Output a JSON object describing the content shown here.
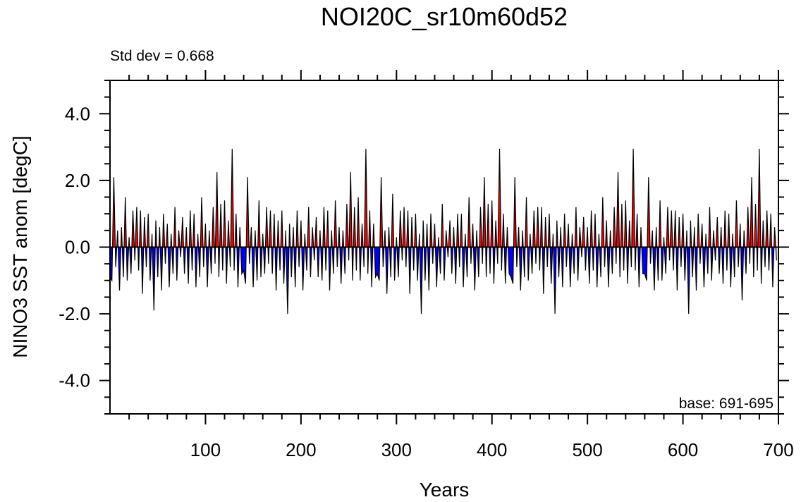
{
  "chart_data": {
    "type": "area",
    "title": "NOI20C_sr10m60d52",
    "xlabel": "Years",
    "ylabel": "NINO3 SST anom [degC]",
    "annotation_left": "Std dev = 0.668",
    "annotation_right": "base: 691-695",
    "xlim": [
      0,
      700
    ],
    "ylim": [
      -5,
      5
    ],
    "x_ticks": [
      100,
      200,
      300,
      400,
      500,
      600,
      700
    ],
    "x_tick_labels": [
      "100",
      "200",
      "300",
      "400",
      "500",
      "600",
      "700"
    ],
    "x_minor_step": 20,
    "y_ticks": [
      -4,
      -2,
      0,
      2,
      4
    ],
    "y_tick_labels": [
      "-4.0",
      "-2.0",
      "0.0",
      "2.0",
      "4.0"
    ],
    "y_minor_step": 0.5,
    "grid": false,
    "colors": {
      "positive": "#ff0000",
      "negative": "#0000ff",
      "line": "#000000"
    },
    "x_start": 0,
    "x_step": 2,
    "values": [
      -0.9,
      -1.0,
      2.1,
      -0.6,
      0.5,
      -1.3,
      0.6,
      -0.9,
      1.5,
      -1.0,
      0.3,
      -0.8,
      1.1,
      -0.4,
      1.2,
      -0.7,
      1.1,
      -1.4,
      0.9,
      -0.6,
      1.0,
      -1.0,
      0.4,
      -1.9,
      0.8,
      -0.9,
      0.6,
      -1.3,
      1.0,
      -0.5,
      0.7,
      -1.2,
      0.4,
      -0.8,
      1.2,
      -1.0,
      0.5,
      -0.3,
      0.9,
      -0.8,
      0.6,
      -1.1,
      1.1,
      -0.7,
      1.0,
      -1.2,
      0.4,
      -0.9,
      1.5,
      -0.6,
      0.7,
      -1.2,
      0.5,
      -0.8,
      1.2,
      -0.5,
      2.25,
      -0.9,
      1.3,
      -0.7,
      1.4,
      -1.1,
      0.8,
      -0.6,
      2.95,
      -0.7,
      1.0,
      -1.2,
      0.6,
      -0.8,
      -0.7,
      -1.1,
      2.1,
      -0.5,
      0.6,
      -1.2,
      0.5,
      -1.0,
      1.4,
      -0.9,
      0.4,
      -0.8,
      1.2,
      -0.5,
      1.1,
      -0.8,
      1.0,
      -1.3,
      0.8,
      -0.7,
      1.1,
      -1.1,
      0.5,
      -2.0,
      0.7,
      -0.9,
      0.6,
      -1.2,
      1.1,
      -0.6,
      0.8,
      -1.3,
      0.4,
      -0.7,
      1.2,
      -0.9,
      0.6,
      -0.4,
      0.9,
      -0.9,
      0.5,
      -1.0,
      1.2,
      -0.7,
      1.1,
      -1.3,
      0.5,
      -0.8,
      1.4,
      -0.6,
      0.6,
      -1.1,
      0.5,
      -0.8,
      1.3,
      -0.4,
      2.25,
      -1.0,
      1.2,
      -0.7,
      1.5,
      -1.0,
      0.7,
      -0.6,
      2.95,
      -0.8,
      1.1,
      -1.2,
      0.7,
      -0.9,
      -0.8,
      -1.0,
      2.1,
      -0.6,
      0.5,
      -1.4,
      0.6,
      -0.9,
      1.6,
      -1.0,
      0.3,
      -0.9,
      1.1,
      -0.4,
      1.2,
      -0.6,
      1.1,
      -1.4,
      0.9,
      -0.7,
      1.0,
      -1.0,
      0.4,
      -2.0,
      0.8,
      -1.0,
      0.7,
      -1.3,
      1.0,
      -0.5,
      0.7,
      -1.2,
      0.3,
      -0.8,
      1.3,
      -1.0,
      0.5,
      -0.3,
      0.8,
      -0.8,
      0.6,
      -1.1,
      1.0,
      -0.6,
      1.0,
      -1.2,
      0.4,
      -0.9,
      1.5,
      -0.5,
      0.7,
      -1.3,
      0.5,
      -0.9,
      1.2,
      -0.5,
      2.1,
      -0.9,
      1.3,
      -0.8,
      1.4,
      -1.1,
      0.8,
      -0.5,
      2.95,
      -0.7,
      1.0,
      -1.1,
      0.6,
      -0.8,
      -0.9,
      -1.1,
      2.1,
      -0.6,
      0.6,
      -1.3,
      0.5,
      -0.9,
      1.5,
      -1.0,
      0.4,
      -0.8,
      1.1,
      -0.5,
      1.2,
      -0.7,
      1.2,
      -1.4,
      0.9,
      -0.6,
      1.0,
      -1.1,
      0.4,
      -2.0,
      0.8,
      -0.9,
      0.6,
      -1.2,
      1.0,
      -0.6,
      0.7,
      -1.2,
      0.4,
      -0.8,
      1.2,
      -1.0,
      0.6,
      -0.3,
      0.9,
      -0.7,
      0.6,
      -1.1,
      1.1,
      -0.7,
      1.0,
      -1.2,
      0.4,
      -0.9,
      1.5,
      -0.6,
      0.8,
      -1.2,
      0.5,
      -0.8,
      1.2,
      -0.5,
      2.25,
      -0.9,
      1.3,
      -0.7,
      1.4,
      -1.1,
      0.8,
      -0.6,
      2.95,
      -0.7,
      1.0,
      -1.2,
      0.6,
      -0.8,
      -0.8,
      -1.0,
      2.1,
      -0.5,
      0.5,
      -1.3,
      0.6,
      -1.0,
      1.4,
      -1.0,
      0.3,
      -0.8,
      1.2,
      -0.4,
      1.1,
      -0.7,
      1.1,
      -1.3,
      0.9,
      -0.6,
      1.0,
      -1.0,
      0.5,
      -2.0,
      0.8,
      -0.9,
      0.6,
      -1.3,
      1.0,
      -0.5,
      0.7,
      -1.2,
      0.4,
      -0.8,
      1.2,
      -1.0,
      0.5,
      -0.4,
      0.9,
      -0.8,
      0.6,
      -1.1,
      1.1,
      -0.7,
      1.0,
      -1.2,
      0.4,
      -0.9,
      1.4,
      -0.6,
      0.7,
      -1.6,
      0.5,
      -0.8,
      1.2,
      -0.5,
      2.1,
      -0.9,
      1.3,
      -0.7,
      2.95,
      -1.1,
      0.8,
      -0.6,
      1.1,
      -0.7,
      1.0,
      -1.2,
      0.6,
      -0.4
    ]
  }
}
